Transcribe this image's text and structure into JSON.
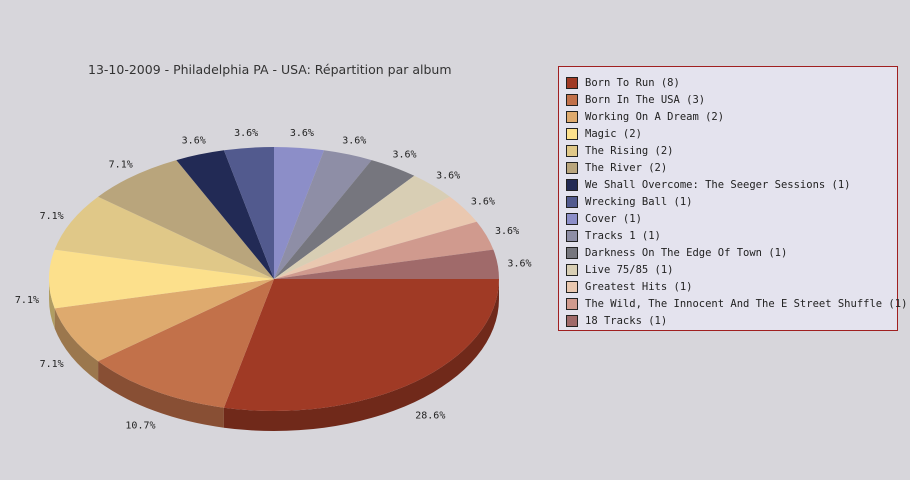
{
  "chart_data": {
    "type": "pie",
    "title": "13-10-2009 - Philadelphia PA - USA:  Répartition par album",
    "legend_position": "right",
    "slices": [
      {
        "label": "Born To Run (8)",
        "value": 8,
        "pct": "28.6%",
        "color": "#a03a25"
      },
      {
        "label": "Born In The USA (3)",
        "value": 3,
        "pct": "10.7%",
        "color": "#c2714a"
      },
      {
        "label": "Working On A Dream (2)",
        "value": 2,
        "pct": "7.1%",
        "color": "#deaa6e"
      },
      {
        "label": "Magic (2)",
        "value": 2,
        "pct": "7.1%",
        "color": "#fce08c"
      },
      {
        "label": "The Rising (2)",
        "value": 2,
        "pct": "7.1%",
        "color": "#e0c888"
      },
      {
        "label": "The River (2)",
        "value": 2,
        "pct": "7.1%",
        "color": "#b9a57c"
      },
      {
        "label": "We Shall Overcome: The Seeger Sessions (1)",
        "value": 1,
        "pct": "3.6%",
        "color": "#222a55"
      },
      {
        "label": "Wrecking Ball (1)",
        "value": 1,
        "pct": "3.6%",
        "color": "#525a8e"
      },
      {
        "label": "Cover (1)",
        "value": 1,
        "pct": "3.6%",
        "color": "#8c8ec8"
      },
      {
        "label": "Tracks 1 (1)",
        "value": 1,
        "pct": "3.6%",
        "color": "#8e8ea6"
      },
      {
        "label": "Darkness On The Edge Of Town (1)",
        "value": 1,
        "pct": "3.6%",
        "color": "#76767e"
      },
      {
        "label": "Live 75/85 (1)",
        "value": 1,
        "pct": "3.6%",
        "color": "#d8ceb4"
      },
      {
        "label": "Greatest Hits (1)",
        "value": 1,
        "pct": "3.6%",
        "color": "#eac8b0"
      },
      {
        "label": "The Wild, The Innocent And The E Street Shuffle (1)",
        "value": 1,
        "pct": "3.6%",
        "color": "#d09a8e"
      },
      {
        "label": "18 Tracks (1)",
        "value": 1,
        "pct": "3.6%",
        "color": "#a06a6a"
      }
    ]
  }
}
